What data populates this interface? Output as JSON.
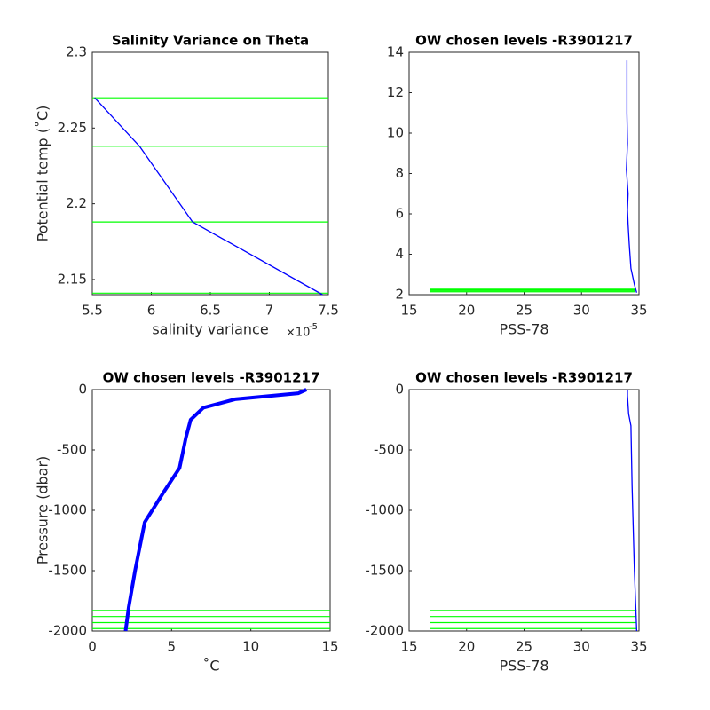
{
  "chart_data": [
    {
      "type": "line",
      "title": "Salinity Variance on Theta",
      "xlabel": "salinity variance",
      "x_multiplier": "×10",
      "x_multiplier_exp": "-5",
      "ylabel": "Potential temp (˚C)",
      "xlim": [
        5.5,
        7.5
      ],
      "xticks": [
        5.5,
        6,
        6.5,
        7,
        7.5
      ],
      "ylim": [
        2.14,
        2.3
      ],
      "yticks": [
        2.15,
        2.2,
        2.25,
        2.3
      ],
      "series": [
        {
          "color": "#0000ff",
          "x": [
            5.52,
            5.9,
            6.35,
            7.45
          ],
          "values": [
            2.27,
            2.238,
            2.188,
            2.14
          ]
        }
      ],
      "levels": {
        "color": "#00ff00",
        "values": [
          2.27,
          2.238,
          2.188,
          2.141
        ]
      }
    },
    {
      "type": "line",
      "title": "OW chosen levels -R3901217",
      "xlabel": "PSS-78",
      "xlim": [
        15,
        35
      ],
      "xticks": [
        15,
        20,
        25,
        30,
        35
      ],
      "ylim": [
        2,
        14
      ],
      "yticks": [
        2,
        4,
        6,
        8,
        10,
        12,
        14
      ],
      "series": [
        {
          "color": "#0000ff",
          "x": [
            34.8,
            34.6,
            34.3,
            34.15,
            34.05,
            34.0,
            34.05,
            33.9,
            34.0,
            33.95,
            33.95
          ],
          "values": [
            2.1,
            2.5,
            3.3,
            4.5,
            5.5,
            6.2,
            7.0,
            8.2,
            9.5,
            11.0,
            13.6
          ]
        }
      ],
      "levels": {
        "color": "#00ff00",
        "values": [
          2.27,
          2.238,
          2.188,
          2.141
        ],
        "xspan": [
          16.8,
          34.7
        ]
      }
    },
    {
      "type": "line",
      "title": "OW chosen levels -R3901217",
      "xlabel": "˚C",
      "ylabel": "Pressure (dbar)",
      "xlim": [
        0,
        15
      ],
      "xticks": [
        0,
        5,
        10,
        15
      ],
      "ylim": [
        -2000,
        0
      ],
      "yticks": [
        -2000,
        -1500,
        -1000,
        -500,
        0
      ],
      "series": [
        {
          "color": "#0000ff",
          "x": [
            2.1,
            2.3,
            2.7,
            3.3,
            4.5,
            5.5,
            5.9,
            6.2,
            7.0,
            9.0,
            13.0,
            13.5
          ],
          "values": [
            -2000,
            -1800,
            -1500,
            -1100,
            -850,
            -650,
            -400,
            -250,
            -150,
            -80,
            -30,
            0
          ]
        }
      ],
      "levels": {
        "color": "#00ff00",
        "values": [
          -1830,
          -1880,
          -1930,
          -1980
        ]
      }
    },
    {
      "type": "line",
      "title": "OW chosen levels -R3901217",
      "xlabel": "PSS-78",
      "xlim": [
        15,
        35
      ],
      "xticks": [
        15,
        20,
        25,
        30,
        35
      ],
      "ylim": [
        -2000,
        0
      ],
      "yticks": [
        -2000,
        -1500,
        -1000,
        -500,
        0
      ],
      "series": [
        {
          "color": "#0000ff",
          "x": [
            34.8,
            34.6,
            34.4,
            34.3,
            34.1,
            34.0,
            34.0
          ],
          "values": [
            -2000,
            -1500,
            -800,
            -300,
            -200,
            -50,
            0
          ]
        }
      ],
      "levels": {
        "color": "#00ff00",
        "values": [
          -1830,
          -1880,
          -1930,
          -1980
        ],
        "xspan": [
          16.8,
          34.8
        ]
      }
    }
  ]
}
